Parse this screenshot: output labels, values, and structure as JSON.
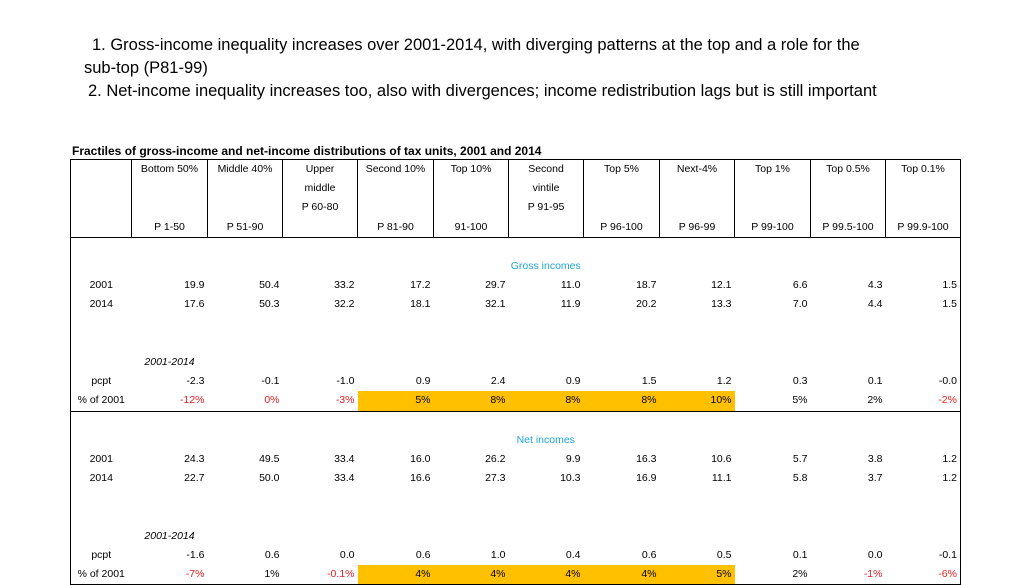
{
  "headline": {
    "line1": "1. Gross-income inequality increases over 2001-2014, with diverging patterns at the top and a role for the",
    "line2": "sub-top (P81-99)",
    "line3": "2. Net-income inequality increases too, also with divergences; income redistribution lags but is still important"
  },
  "table": {
    "title": "Fractiles of gross-income and net-income distributions of tax units, 2001 and 2014",
    "header_top": [
      "",
      "Bottom 50%",
      "Middle 40%",
      "Upper",
      "Second 10%",
      "Top 10%",
      "Second",
      "Top 5%",
      "Next-4%",
      "Top 1%",
      "Top 0.5%",
      "Top 0.1%"
    ],
    "header_mid": [
      "",
      "",
      "",
      "middle",
      "",
      "",
      "vintile",
      "",
      "",
      "",
      "",
      ""
    ],
    "header_pctl_upper": [
      "",
      "",
      "",
      "P 60-80",
      "",
      "",
      "P 91-95",
      "",
      "",
      "",
      "",
      ""
    ],
    "header_pctl": [
      "",
      "P 1-50",
      "P 51-90",
      "",
      "P 81-90",
      "91-100",
      "",
      "P 96-100",
      "P 96-99",
      "P 99-100",
      "P 99.5-100",
      "P 99.9-100"
    ],
    "sections": [
      {
        "title": "Gross incomes",
        "rows": [
          {
            "label": "2001",
            "values": [
              "19.9",
              "50.4",
              "33.2",
              "17.2",
              "29.7",
              "11.0",
              "18.7",
              "12.1",
              "6.6",
              "4.3",
              "1.5"
            ]
          },
          {
            "label": "2014",
            "values": [
              "17.6",
              "50.3",
              "32.2",
              "18.1",
              "32.1",
              "11.9",
              "20.2",
              "13.3",
              "7.0",
              "4.4",
              "1.5"
            ]
          }
        ],
        "period": "2001-2014",
        "pcpt": {
          "label": "pcpt",
          "values": [
            "-2.3",
            "-0.1",
            "-1.0",
            "0.9",
            "2.4",
            "0.9",
            "1.5",
            "1.2",
            "0.3",
            "0.1",
            "-0.0"
          ]
        },
        "pct": {
          "label": "% of 2001",
          "values": [
            "-12%",
            "0%",
            "-3%",
            "5%",
            "8%",
            "8%",
            "8%",
            "10%",
            "5%",
            "2%",
            "-2%"
          ],
          "red": [
            true,
            true,
            true,
            false,
            false,
            false,
            false,
            false,
            false,
            false,
            true
          ],
          "highlight": [
            false,
            false,
            false,
            true,
            true,
            true,
            true,
            true,
            false,
            false,
            false
          ]
        }
      },
      {
        "title": "Net incomes",
        "rows": [
          {
            "label": "2001",
            "values": [
              "24.3",
              "49.5",
              "33.4",
              "16.0",
              "26.2",
              "9.9",
              "16.3",
              "10.6",
              "5.7",
              "3.8",
              "1.2"
            ]
          },
          {
            "label": "2014",
            "values": [
              "22.7",
              "50.0",
              "33.4",
              "16.6",
              "27.3",
              "10.3",
              "16.9",
              "11.1",
              "5.8",
              "3.7",
              "1.2"
            ]
          }
        ],
        "period": "2001-2014",
        "pcpt": {
          "label": "pcpt",
          "values": [
            "-1.6",
            "0.6",
            "0.0",
            "0.6",
            "1.0",
            "0.4",
            "0.6",
            "0.5",
            "0.1",
            "0.0",
            "-0.1"
          ]
        },
        "pct": {
          "label": "% of 2001",
          "values": [
            "-7%",
            "1%",
            "-0.1%",
            "4%",
            "4%",
            "4%",
            "4%",
            "5%",
            "2%",
            "-1%",
            "-6%"
          ],
          "red": [
            true,
            false,
            true,
            false,
            false,
            false,
            false,
            false,
            false,
            true,
            true
          ],
          "highlight": [
            false,
            false,
            false,
            true,
            true,
            true,
            true,
            true,
            false,
            false,
            false
          ]
        }
      }
    ]
  }
}
